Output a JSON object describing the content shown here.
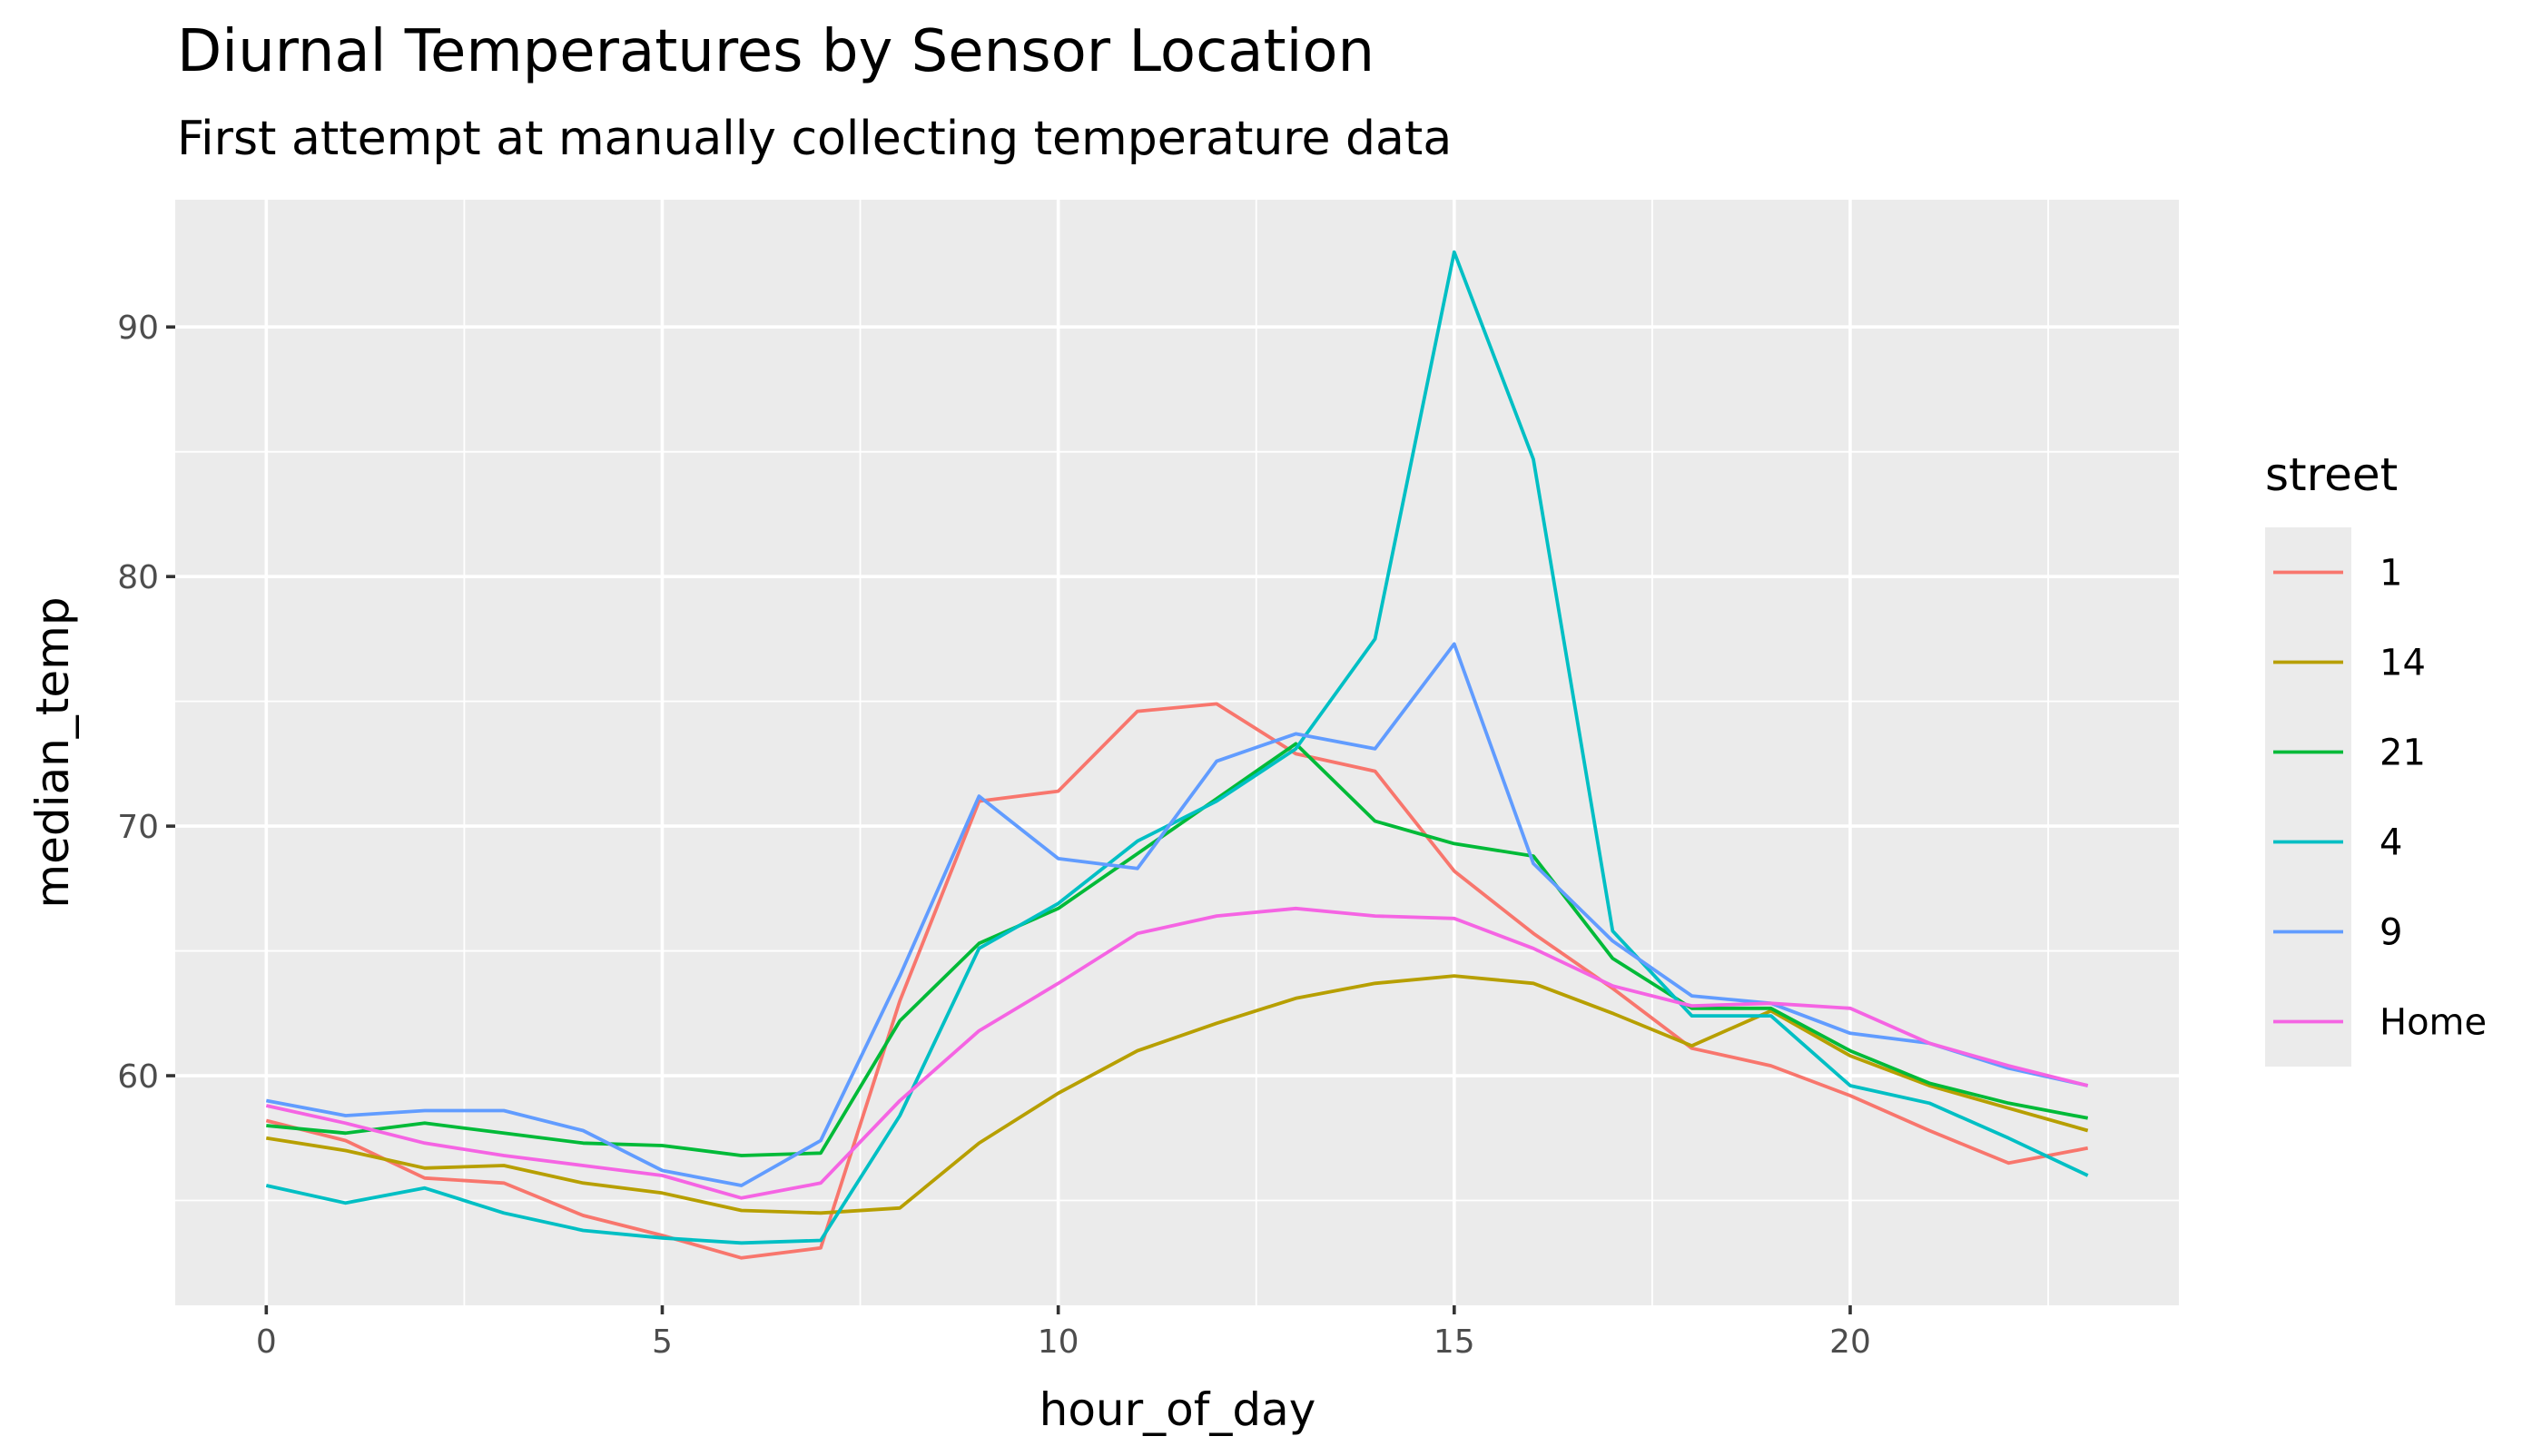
{
  "chart_data": {
    "type": "line",
    "title": "Diurnal Temperatures by Sensor Location",
    "subtitle": "First attempt at manually collecting temperature data",
    "xlabel": "hour_of_day",
    "ylabel": "median_temp",
    "xlim": [
      -1.15,
      24.15
    ],
    "ylim": [
      50.8,
      95.1
    ],
    "xticks": [
      0,
      5,
      10,
      15,
      20
    ],
    "yticks": [
      60,
      70,
      80,
      90
    ],
    "grid": true,
    "legend": {
      "title": "street",
      "placement": "right"
    },
    "x": [
      0,
      1,
      2,
      3,
      4,
      5,
      6,
      7,
      8,
      9,
      10,
      11,
      12,
      13,
      14,
      15,
      16,
      17,
      18,
      19,
      20,
      21,
      22,
      23
    ],
    "series": [
      {
        "name": "1",
        "color": "#F8766D",
        "values": [
          58.2,
          57.4,
          55.9,
          55.7,
          54.4,
          53.6,
          52.7,
          53.1,
          63.0,
          71.0,
          71.4,
          74.6,
          74.9,
          72.9,
          72.2,
          68.2,
          65.7,
          63.5,
          61.1,
          60.4,
          59.2,
          57.8,
          56.5,
          57.1
        ]
      },
      {
        "name": "14",
        "color": "#B79F00",
        "values": [
          57.5,
          57.0,
          56.3,
          56.4,
          55.7,
          55.3,
          54.6,
          54.5,
          54.7,
          57.3,
          59.3,
          61.0,
          62.1,
          63.1,
          63.7,
          64.0,
          63.7,
          62.5,
          61.2,
          62.6,
          60.8,
          59.6,
          58.7,
          57.8
        ]
      },
      {
        "name": "21",
        "color": "#00BA38",
        "values": [
          58.0,
          57.7,
          58.1,
          57.7,
          57.3,
          57.2,
          56.8,
          56.9,
          62.2,
          65.3,
          66.7,
          68.9,
          71.1,
          73.3,
          70.2,
          69.3,
          68.8,
          64.7,
          62.7,
          62.7,
          61.0,
          59.7,
          58.9,
          58.3
        ]
      },
      {
        "name": "4",
        "color": "#00BFC4",
        "values": [
          55.6,
          54.9,
          55.5,
          54.5,
          53.8,
          53.5,
          53.3,
          53.4,
          58.4,
          65.1,
          66.9,
          69.4,
          71.0,
          73.1,
          77.5,
          93.0,
          84.7,
          65.8,
          62.4,
          62.4,
          59.6,
          58.9,
          57.5,
          56.0
        ]
      },
      {
        "name": "9",
        "color": "#619CFF",
        "values": [
          59.0,
          58.4,
          58.6,
          58.6,
          57.8,
          56.2,
          55.6,
          57.4,
          64.0,
          71.2,
          68.7,
          68.3,
          72.6,
          73.7,
          73.1,
          77.3,
          68.5,
          65.4,
          63.2,
          62.9,
          61.7,
          61.3,
          60.3,
          59.6
        ]
      },
      {
        "name": "Home",
        "color": "#F564E3",
        "values": [
          58.8,
          58.1,
          57.3,
          56.8,
          56.4,
          56.0,
          55.1,
          55.7,
          59.0,
          61.8,
          63.7,
          65.7,
          66.4,
          66.7,
          66.4,
          66.3,
          65.1,
          63.6,
          62.8,
          62.9,
          62.7,
          61.3,
          60.4,
          59.6
        ]
      }
    ]
  }
}
